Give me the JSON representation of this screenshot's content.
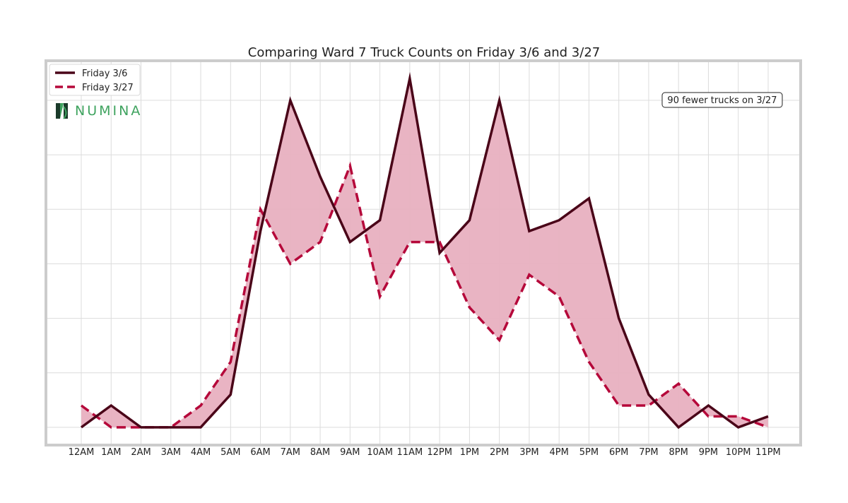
{
  "chart_data": {
    "type": "line",
    "title": "Comparing Ward 7 Truck Counts on Friday 3/6 and 3/27",
    "xlabel": "",
    "ylabel": "",
    "categories": [
      "12AM",
      "1AM",
      "2AM",
      "3AM",
      "4AM",
      "5AM",
      "6AM",
      "7AM",
      "8AM",
      "9AM",
      "10AM",
      "11AM",
      "12PM",
      "1PM",
      "2PM",
      "3PM",
      "4PM",
      "5PM",
      "6PM",
      "7PM",
      "8PM",
      "9PM",
      "10PM",
      "11PM"
    ],
    "series": [
      {
        "name": "Friday 3/6",
        "style": "solid",
        "color": "#4a0418",
        "values": [
          0,
          2,
          0,
          0,
          0,
          3,
          18,
          30,
          23,
          17,
          19,
          32,
          16,
          19,
          30,
          18,
          19,
          21,
          10,
          3,
          0,
          2,
          0,
          1
        ]
      },
      {
        "name": "Friday 3/27",
        "style": "dashed",
        "color": "#b5083a",
        "values": [
          2,
          0,
          0,
          0,
          2,
          6,
          20,
          15,
          17,
          24,
          12,
          17,
          17,
          11,
          8,
          14,
          12,
          6,
          2,
          2,
          4,
          1,
          1,
          0
        ]
      }
    ],
    "fill_between_color": "#e8b0c0",
    "ylim": [
      -1.5,
      33.5
    ],
    "grid": true,
    "legend_position": "top-left",
    "annotation": "90 fewer trucks on 3/27",
    "annotation_position": "top-right"
  },
  "logo": {
    "text": "NUMINA",
    "color": "#3fa35f"
  },
  "colors": {
    "frame": "#cccccc",
    "grid": "#dcdcdc"
  }
}
